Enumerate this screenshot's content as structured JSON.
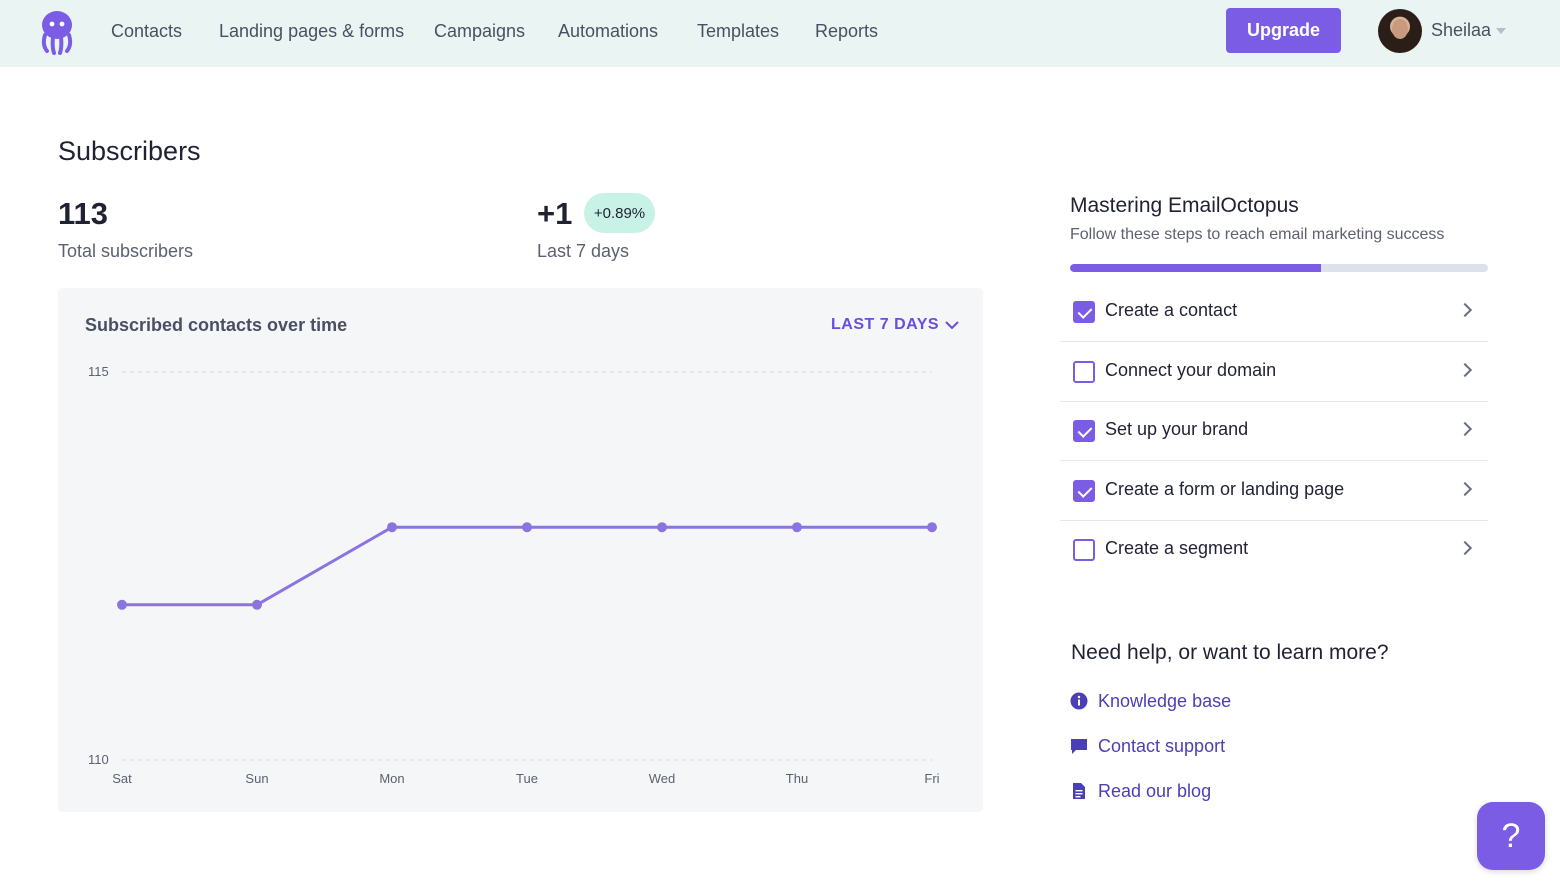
{
  "nav": {
    "items": [
      "Contacts",
      "Landing pages & forms",
      "Campaigns",
      "Automations",
      "Templates",
      "Reports"
    ],
    "upgrade_label": "Upgrade",
    "user_name": "Sheilaa"
  },
  "subscribers": {
    "title": "Subscribers",
    "total_value": "113",
    "total_label": "Total subscribers",
    "change_value": "+1",
    "change_badge": "+0.89%",
    "change_label": "Last 7 days"
  },
  "chart": {
    "title": "Subscribed contacts over time",
    "range_label": "LAST 7 DAYS"
  },
  "chart_data": {
    "type": "line",
    "title": "Subscribed contacts over time",
    "categories": [
      "Sat",
      "Sun",
      "Mon",
      "Tue",
      "Wed",
      "Thu",
      "Fri"
    ],
    "values": [
      112,
      112,
      113,
      113,
      113,
      113,
      113
    ],
    "ylim": [
      110,
      115
    ],
    "yticks": [
      "110",
      "115"
    ],
    "color": "#8b74e0",
    "grid": true
  },
  "onboarding": {
    "title": "Mastering EmailOctopus",
    "subtitle": "Follow these steps to reach email marketing success",
    "progress": 0.6,
    "steps": [
      {
        "label": "Create a contact",
        "checked": true
      },
      {
        "label": "Connect your domain",
        "checked": false
      },
      {
        "label": "Set up your brand",
        "checked": true
      },
      {
        "label": "Create a form or landing page",
        "checked": true
      },
      {
        "label": "Create a segment",
        "checked": false
      }
    ]
  },
  "help": {
    "title": "Need help, or want to learn more?",
    "links": [
      {
        "label": "Knowledge base",
        "icon": "info-icon"
      },
      {
        "label": "Contact support",
        "icon": "chat-icon"
      },
      {
        "label": "Read our blog",
        "icon": "document-icon"
      }
    ],
    "fab_label": "?"
  },
  "colors": {
    "accent": "#7b5ce5",
    "nav_bg": "#eaf4f3",
    "badge_bg": "#c9f2e6"
  }
}
